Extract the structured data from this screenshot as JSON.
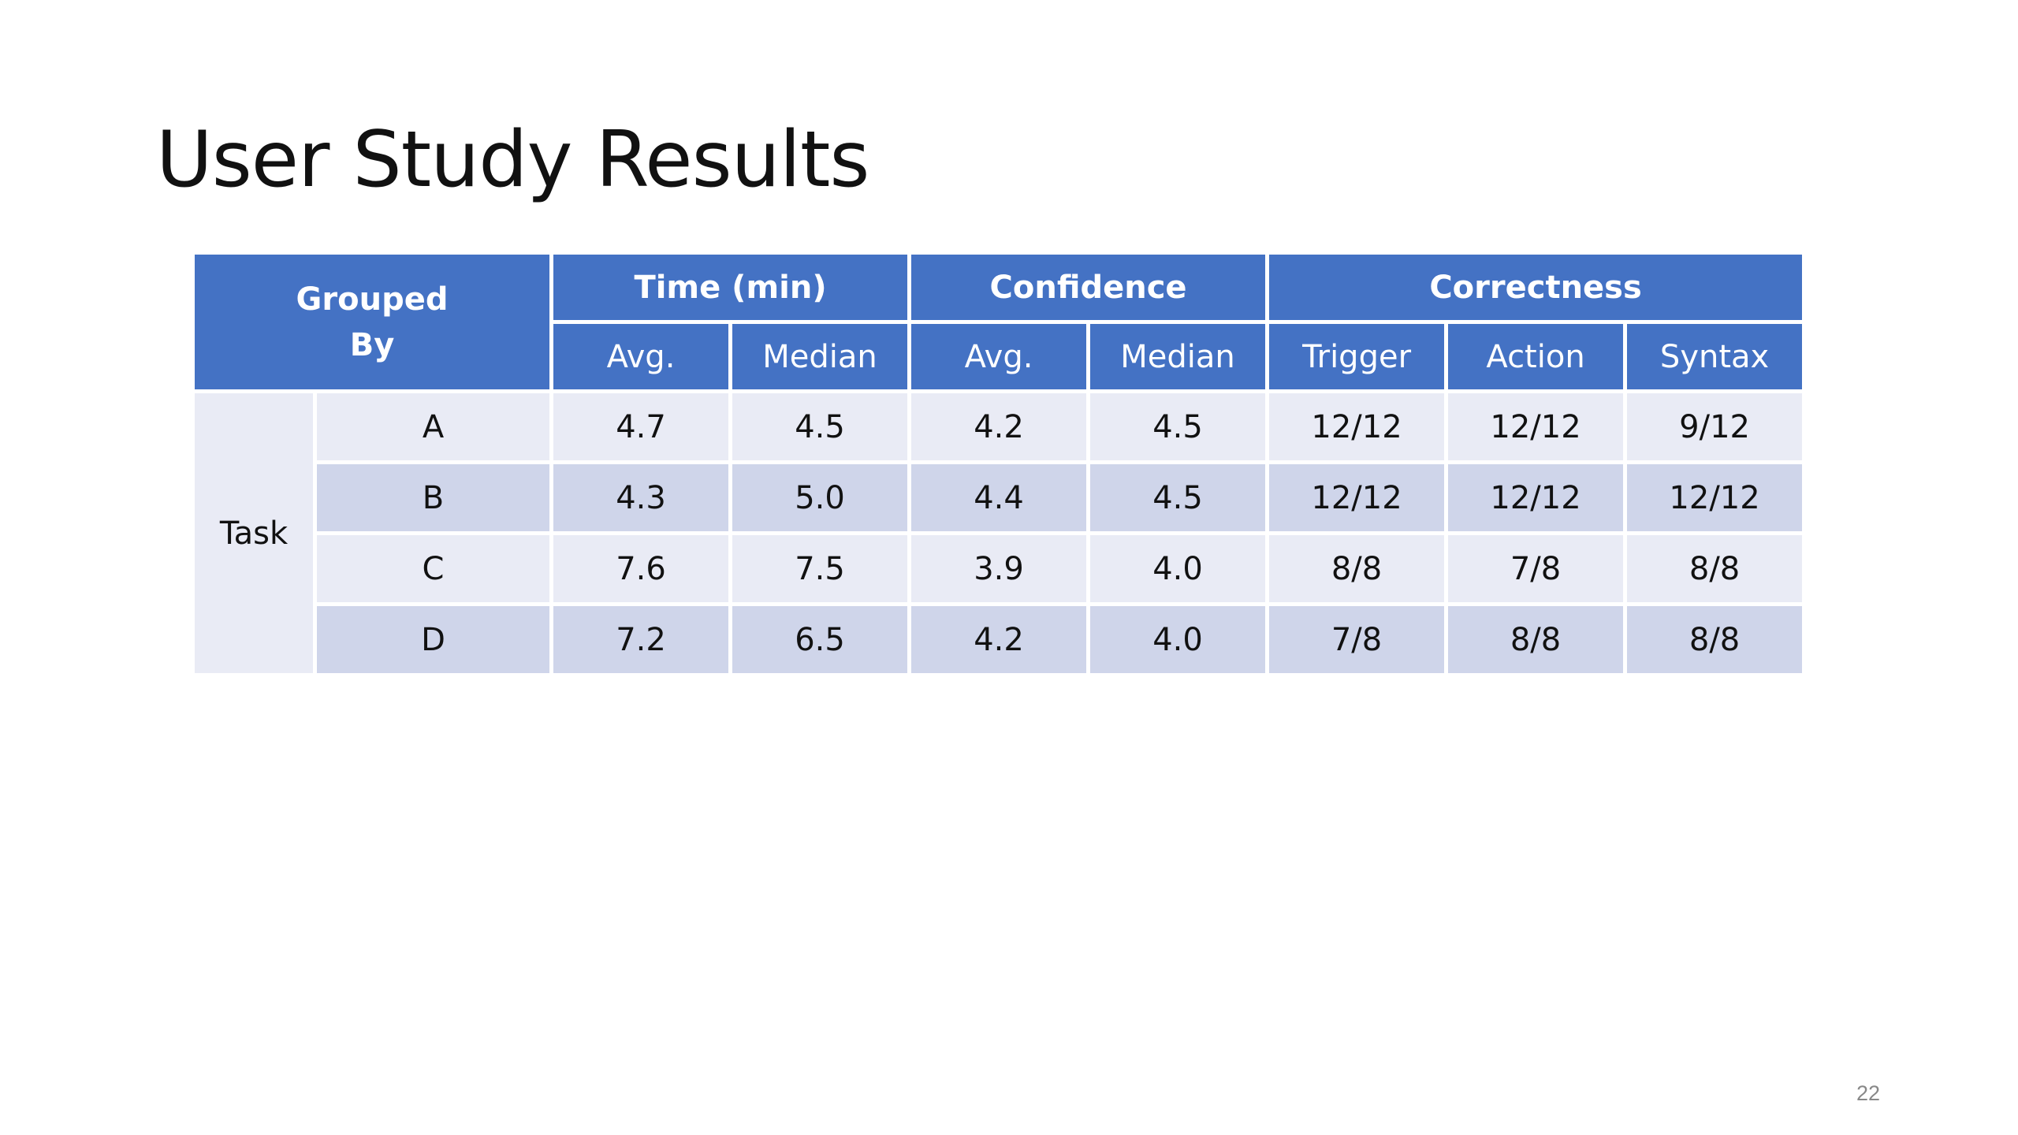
{
  "slide": {
    "title": "User Study Results",
    "page_number": "22"
  },
  "table": {
    "grouped_by_line1": "Grouped",
    "grouped_by_line2": "By",
    "group_headers": [
      "Time (min)",
      "Confidence",
      "Correctness"
    ],
    "sub_headers": [
      "Avg.",
      "Median",
      "Avg.",
      "Median",
      "Trigger",
      "Action",
      "Syntax"
    ],
    "row_group_label": "Task",
    "rows": [
      {
        "label": "A",
        "values": [
          "4.7",
          "4.5",
          "4.2",
          "4.5",
          "12/12",
          "12/12",
          "9/12"
        ]
      },
      {
        "label": "B",
        "values": [
          "4.3",
          "5.0",
          "4.4",
          "4.5",
          "12/12",
          "12/12",
          "12/12"
        ]
      },
      {
        "label": "C",
        "values": [
          "7.6",
          "7.5",
          "3.9",
          "4.0",
          "8/8",
          "7/8",
          "8/8"
        ]
      },
      {
        "label": "D",
        "values": [
          "7.2",
          "6.5",
          "4.2",
          "4.0",
          "7/8",
          "8/8",
          "8/8"
        ]
      }
    ]
  },
  "colors": {
    "header_blue": "#4472c4",
    "row_light": "#e9ebf5",
    "row_dark": "#cfd5ea"
  }
}
